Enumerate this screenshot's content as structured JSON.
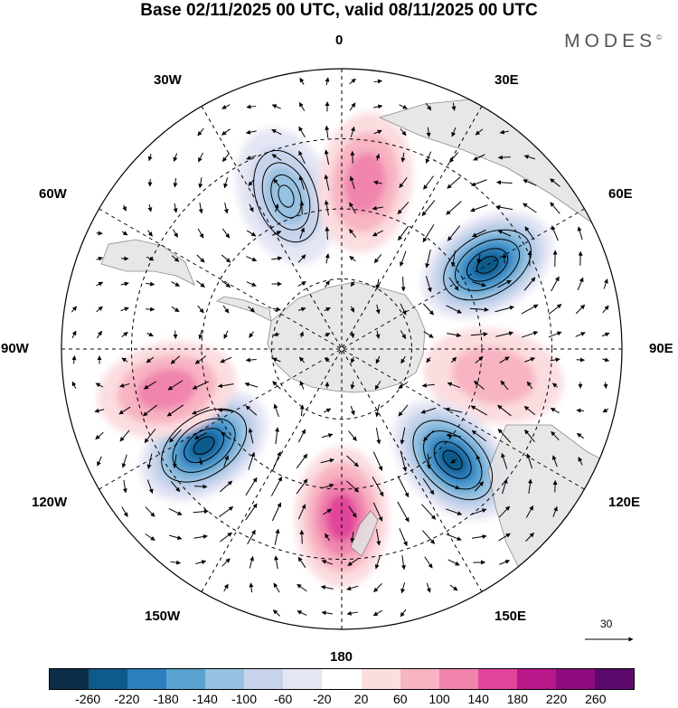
{
  "title": "Base 02/11/2025 00 UTC, valid 08/11/2025 00 UTC",
  "brand": "MODES",
  "brand_mark": "©",
  "longitude_labels": {
    "top": "0",
    "e30": "30E",
    "e60": "60E",
    "e90": "90E",
    "e120": "120E",
    "e150": "150E",
    "bottom": "180",
    "w150": "150W",
    "w120": "120W",
    "w90": "90W",
    "w60": "60W",
    "w30": "30W"
  },
  "reference_vector": {
    "value": "30"
  },
  "colorbar": {
    "colors": [
      "#0b2f4a",
      "#0e5a8a",
      "#2a7fbd",
      "#5aa2d0",
      "#97c1e0",
      "#c6d3eb",
      "#e5e6f4",
      "#ffffff",
      "#fbdde0",
      "#f8b4c3",
      "#f084ad",
      "#e1459a",
      "#b8188a",
      "#8e0c7f",
      "#5c0a6e"
    ],
    "ticks": [
      "-260",
      "-220",
      "-180",
      "-140",
      "-100",
      "-60",
      "-20",
      "20",
      "60",
      "100",
      "140",
      "180",
      "220",
      "260"
    ]
  },
  "anomaly_centers": [
    {
      "sign": "negative",
      "value": -140,
      "bearing_deg": 340,
      "rfrac": 0.58
    },
    {
      "sign": "positive",
      "value": 120,
      "bearing_deg": 8,
      "rfrac": 0.6
    },
    {
      "sign": "negative",
      "value": -240,
      "bearing_deg": 60,
      "rfrac": 0.6
    },
    {
      "sign": "positive",
      "value": 100,
      "bearing_deg": 100,
      "rfrac": 0.55
    },
    {
      "sign": "negative",
      "value": -240,
      "bearing_deg": 135,
      "rfrac": 0.56
    },
    {
      "sign": "positive",
      "value": 160,
      "bearing_deg": 180,
      "rfrac": 0.6
    },
    {
      "sign": "negative",
      "value": -240,
      "bearing_deg": 235,
      "rfrac": 0.6
    },
    {
      "sign": "positive",
      "value": 120,
      "bearing_deg": 257,
      "rfrac": 0.64
    }
  ]
}
